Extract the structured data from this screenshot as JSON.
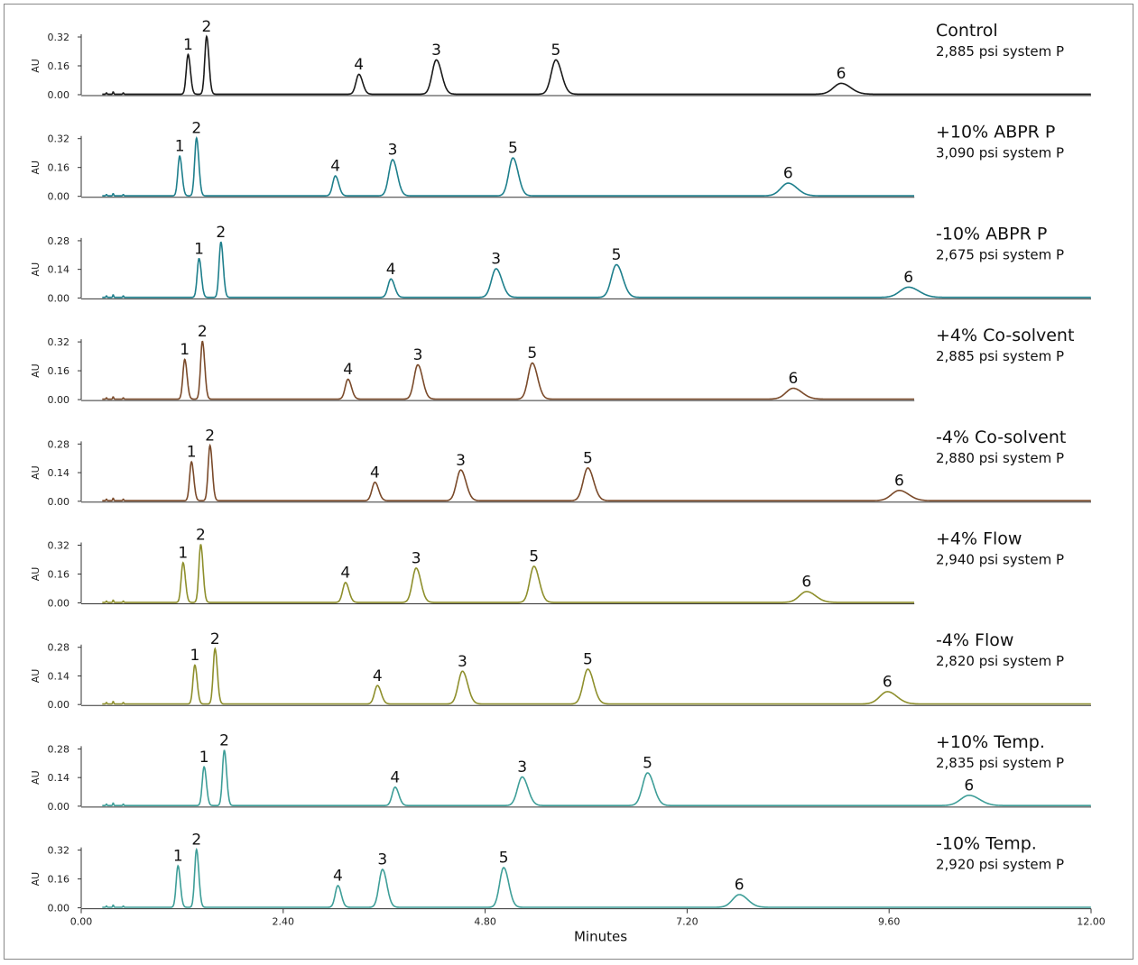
{
  "chart_data": {
    "type": "line",
    "xlabel": "Minutes",
    "ylabel": "AU",
    "xlim": [
      0,
      12
    ],
    "x_ticks": [
      "0.00",
      "2.40",
      "4.80",
      "7.20",
      "9.60",
      "12.00"
    ],
    "x_tick_values": [
      0,
      2.4,
      4.8,
      7.2,
      9.6,
      12.0
    ],
    "series": [
      {
        "name": "Control",
        "subtitle": "2,885 psi system P",
        "color": "#1a1a1a",
        "x_end": 12.0,
        "y_ticks": [
          "0.32",
          "0.16",
          "0.00"
        ],
        "y_tick_values": [
          0.32,
          0.16,
          0.0
        ],
        "ymax": 0.34,
        "peaks": [
          {
            "label": "1",
            "rt": 1.27,
            "height": 0.22,
            "width": 0.022
          },
          {
            "label": "2",
            "rt": 1.49,
            "height": 0.32,
            "width": 0.022
          },
          {
            "label": "4",
            "rt": 3.3,
            "height": 0.11,
            "width": 0.035
          },
          {
            "label": "3",
            "rt": 4.22,
            "height": 0.19,
            "width": 0.05
          },
          {
            "label": "5",
            "rt": 5.64,
            "height": 0.19,
            "width": 0.055
          },
          {
            "label": "6",
            "rt": 9.03,
            "height": 0.06,
            "width": 0.09
          }
        ]
      },
      {
        "name": "+10% ABPR P",
        "subtitle": "3,090 psi system P",
        "color": "#1e7f8c",
        "x_end": 9.9,
        "y_ticks": [
          "0.32",
          "0.16",
          "0.00"
        ],
        "y_tick_values": [
          0.32,
          0.16,
          0.0
        ],
        "ymax": 0.34,
        "peaks": [
          {
            "label": "1",
            "rt": 1.17,
            "height": 0.22,
            "width": 0.022
          },
          {
            "label": "2",
            "rt": 1.37,
            "height": 0.32,
            "width": 0.022
          },
          {
            "label": "4",
            "rt": 3.02,
            "height": 0.11,
            "width": 0.032
          },
          {
            "label": "3",
            "rt": 3.7,
            "height": 0.2,
            "width": 0.045
          },
          {
            "label": "5",
            "rt": 5.13,
            "height": 0.21,
            "width": 0.05
          },
          {
            "label": "6",
            "rt": 8.4,
            "height": 0.07,
            "width": 0.085
          }
        ]
      },
      {
        "name": "-10% ABPR P",
        "subtitle": "2,675 psi system P",
        "color": "#1e7f8c",
        "x_end": 12.0,
        "y_ticks": [
          "0.28",
          "0.14",
          "0.00"
        ],
        "y_tick_values": [
          0.28,
          0.14,
          0.0
        ],
        "ymax": 0.3,
        "peaks": [
          {
            "label": "1",
            "rt": 1.4,
            "height": 0.19,
            "width": 0.022
          },
          {
            "label": "2",
            "rt": 1.66,
            "height": 0.27,
            "width": 0.022
          },
          {
            "label": "4",
            "rt": 3.68,
            "height": 0.09,
            "width": 0.035
          },
          {
            "label": "3",
            "rt": 4.93,
            "height": 0.14,
            "width": 0.055
          },
          {
            "label": "5",
            "rt": 6.36,
            "height": 0.16,
            "width": 0.06
          },
          {
            "label": "6",
            "rt": 9.83,
            "height": 0.05,
            "width": 0.1
          }
        ]
      },
      {
        "name": "+4% Co-solvent",
        "subtitle": "2,885 psi system P",
        "color": "#7a4a2a",
        "x_end": 9.9,
        "y_ticks": [
          "0.32",
          "0.16",
          "0.00"
        ],
        "y_tick_values": [
          0.32,
          0.16,
          0.0
        ],
        "ymax": 0.34,
        "peaks": [
          {
            "label": "1",
            "rt": 1.23,
            "height": 0.22,
            "width": 0.022
          },
          {
            "label": "2",
            "rt": 1.44,
            "height": 0.32,
            "width": 0.022
          },
          {
            "label": "4",
            "rt": 3.17,
            "height": 0.11,
            "width": 0.033
          },
          {
            "label": "3",
            "rt": 4.0,
            "height": 0.19,
            "width": 0.045
          },
          {
            "label": "5",
            "rt": 5.36,
            "height": 0.2,
            "width": 0.05
          },
          {
            "label": "6",
            "rt": 8.46,
            "height": 0.06,
            "width": 0.085
          }
        ]
      },
      {
        "name": "-4% Co-solvent",
        "subtitle": "2,880 psi system P",
        "color": "#7a4a2a",
        "x_end": 12.0,
        "y_ticks": [
          "0.28",
          "0.14",
          "0.00"
        ],
        "y_tick_values": [
          0.28,
          0.14,
          0.0
        ],
        "ymax": 0.3,
        "peaks": [
          {
            "label": "1",
            "rt": 1.31,
            "height": 0.19,
            "width": 0.022
          },
          {
            "label": "2",
            "rt": 1.53,
            "height": 0.27,
            "width": 0.022
          },
          {
            "label": "4",
            "rt": 3.49,
            "height": 0.09,
            "width": 0.035
          },
          {
            "label": "3",
            "rt": 4.51,
            "height": 0.15,
            "width": 0.05
          },
          {
            "label": "5",
            "rt": 6.02,
            "height": 0.16,
            "width": 0.055
          },
          {
            "label": "6",
            "rt": 9.72,
            "height": 0.05,
            "width": 0.09
          }
        ]
      },
      {
        "name": "+4% Flow",
        "subtitle": "2,940 psi system P",
        "color": "#8e8f2c",
        "x_end": 9.9,
        "y_ticks": [
          "0.32",
          "0.16",
          "0.00"
        ],
        "y_tick_values": [
          0.32,
          0.16,
          0.0
        ],
        "ymax": 0.34,
        "peaks": [
          {
            "label": "1",
            "rt": 1.21,
            "height": 0.22,
            "width": 0.022
          },
          {
            "label": "2",
            "rt": 1.42,
            "height": 0.32,
            "width": 0.022
          },
          {
            "label": "4",
            "rt": 3.14,
            "height": 0.11,
            "width": 0.033
          },
          {
            "label": "3",
            "rt": 3.98,
            "height": 0.19,
            "width": 0.045
          },
          {
            "label": "5",
            "rt": 5.38,
            "height": 0.2,
            "width": 0.05
          },
          {
            "label": "6",
            "rt": 8.62,
            "height": 0.06,
            "width": 0.085
          }
        ]
      },
      {
        "name": "-4% Flow",
        "subtitle": "2,820 psi system P",
        "color": "#8e8f2c",
        "x_end": 12.0,
        "y_ticks": [
          "0.28",
          "0.14",
          "0.00"
        ],
        "y_tick_values": [
          0.28,
          0.14,
          0.0
        ],
        "ymax": 0.3,
        "peaks": [
          {
            "label": "1",
            "rt": 1.35,
            "height": 0.19,
            "width": 0.022
          },
          {
            "label": "2",
            "rt": 1.59,
            "height": 0.27,
            "width": 0.022
          },
          {
            "label": "4",
            "rt": 3.52,
            "height": 0.09,
            "width": 0.035
          },
          {
            "label": "3",
            "rt": 4.53,
            "height": 0.16,
            "width": 0.05
          },
          {
            "label": "5",
            "rt": 6.02,
            "height": 0.17,
            "width": 0.055
          },
          {
            "label": "6",
            "rt": 9.58,
            "height": 0.06,
            "width": 0.09
          }
        ]
      },
      {
        "name": "+10% Temp.",
        "subtitle": "2,835 psi system P",
        "color": "#3e9e98",
        "x_end": 12.0,
        "y_ticks": [
          "0.28",
          "0.14",
          "0.00"
        ],
        "y_tick_values": [
          0.28,
          0.14,
          0.0
        ],
        "ymax": 0.3,
        "peaks": [
          {
            "label": "1",
            "rt": 1.46,
            "height": 0.19,
            "width": 0.022
          },
          {
            "label": "2",
            "rt": 1.7,
            "height": 0.27,
            "width": 0.022
          },
          {
            "label": "4",
            "rt": 3.73,
            "height": 0.09,
            "width": 0.035
          },
          {
            "label": "3",
            "rt": 5.24,
            "height": 0.14,
            "width": 0.055
          },
          {
            "label": "5",
            "rt": 6.73,
            "height": 0.16,
            "width": 0.06
          },
          {
            "label": "6",
            "rt": 10.55,
            "height": 0.05,
            "width": 0.1
          }
        ]
      },
      {
        "name": "-10% Temp.",
        "subtitle": "2,920 psi system P",
        "color": "#3e9e98",
        "x_end": 12.0,
        "y_ticks": [
          "0.32",
          "0.16",
          "0.00"
        ],
        "y_tick_values": [
          0.32,
          0.16,
          0.0
        ],
        "ymax": 0.34,
        "peaks": [
          {
            "label": "1",
            "rt": 1.15,
            "height": 0.23,
            "width": 0.022
          },
          {
            "label": "2",
            "rt": 1.37,
            "height": 0.32,
            "width": 0.022
          },
          {
            "label": "4",
            "rt": 3.05,
            "height": 0.12,
            "width": 0.032
          },
          {
            "label": "3",
            "rt": 3.58,
            "height": 0.21,
            "width": 0.042
          },
          {
            "label": "5",
            "rt": 5.02,
            "height": 0.22,
            "width": 0.048
          },
          {
            "label": "6",
            "rt": 7.82,
            "height": 0.07,
            "width": 0.08
          }
        ]
      }
    ]
  }
}
